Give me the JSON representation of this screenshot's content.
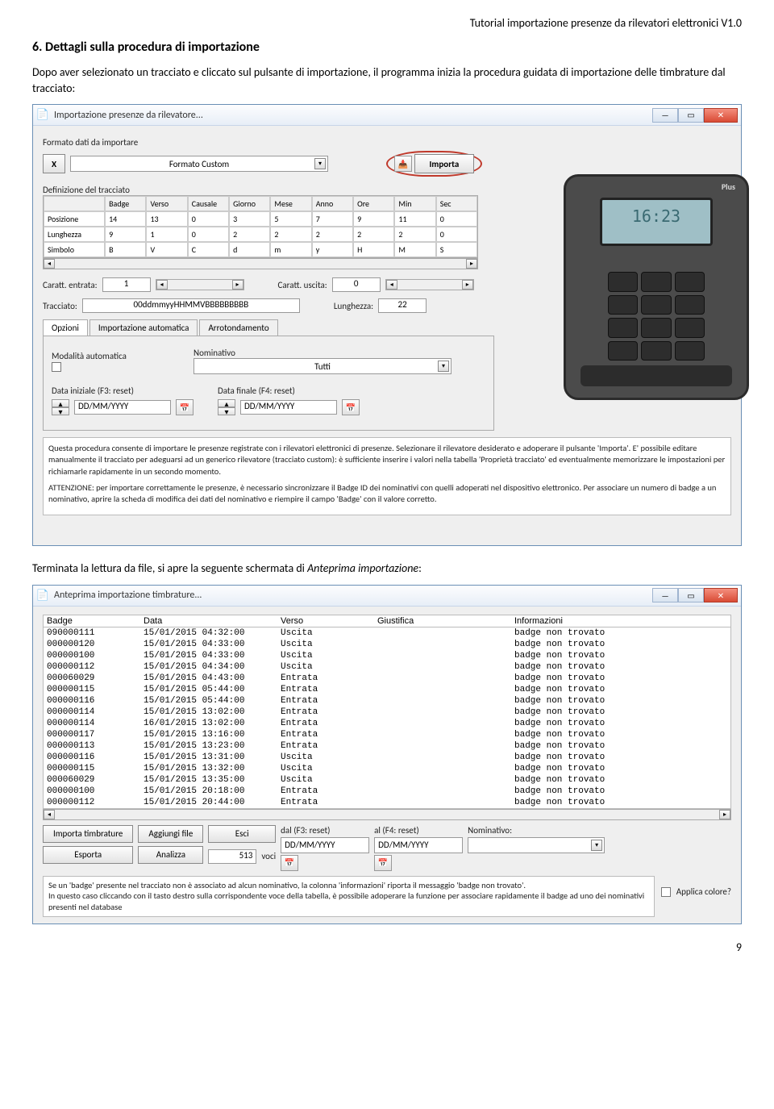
{
  "doc": {
    "header": "Tutorial importazione  presenze da rilevatori elettronici V1.0",
    "section_num": "6.",
    "section_title": "Dettagli sulla procedura di importazione",
    "p1": "Dopo aver selezionato un tracciato e cliccato sul pulsante di importazione, il programma inizia la procedura guidata di importazione delle timbrature dal tracciato:",
    "p2_a": "Terminata la lettura da file, si apre la seguente schermata di ",
    "p2_b": "Anteprima importazione",
    "p2_c": ":",
    "page_num": "9"
  },
  "win1": {
    "title": "Importazione presenze da rilevatore...",
    "formato_lbl": "Formato dati da importare",
    "x_btn": "X",
    "formato_val": "Formato Custom",
    "importa_btn": "Importa",
    "def_tracciato": "Definizione del tracciato",
    "grid_headers": [
      "",
      "Badge",
      "Verso",
      "Causale",
      "Giorno",
      "Mese",
      "Anno",
      "Ore",
      "Min",
      "Sec"
    ],
    "grid_rows": [
      [
        "Posizione",
        "14",
        "13",
        "0",
        "3",
        "5",
        "7",
        "9",
        "11",
        "0"
      ],
      [
        "Lunghezza",
        "9",
        "1",
        "0",
        "2",
        "2",
        "2",
        "2",
        "2",
        "0"
      ],
      [
        "Simbolo",
        "B",
        "V",
        "C",
        "d",
        "m",
        "y",
        "H",
        "M",
        "S"
      ]
    ],
    "caratt_entrata_lbl": "Caratt. entrata:",
    "caratt_entrata_val": "1",
    "caratt_uscita_lbl": "Caratt. uscita:",
    "caratt_uscita_val": "0",
    "tracciato_lbl": "Tracciato:",
    "tracciato_val": "00ddmmyyHHMMVBBBBBBBBB",
    "lunghezza_lbl": "Lunghezza:",
    "lunghezza_val": "22",
    "tab1": "Opzioni",
    "tab2": "Importazione automatica",
    "tab3": "Arrotondamento",
    "mod_auto_lbl": "Modalità automatica",
    "nominativo_lbl": "Nominativo",
    "tutti_val": "Tutti",
    "data_ini_lbl": "Data iniziale (F3: reset)",
    "data_fin_lbl": "Data finale (F4: reset)",
    "date_ph": "DD/MM/YYYY",
    "help_p1": "Questa procedura consente di importare le presenze registrate con i rilevatori elettronici di presenze. Selezionare il rilevatore desiderato e adoperare il pulsante 'Importa'. E' possibile editare manualmente il tracciato per adeguarsi ad un generico rilevatore (tracciato custom): è sufficiente inserire i valori nella tabella 'Proprietà tracciato' ed eventualmente memorizzare le impostazioni per richiamarle rapidamente in un secondo momento.",
    "help_p2": "ATTENZIONE: per importare correttamente le presenze, è necessario sincronizzare il Badge ID dei nominativi con quelli adoperati nel dispositivo elettronico. Per associare un numero di badge a un nominativo, aprire la scheda di modifica dei dati del nominativo e riempire il campo 'Badge' con il valore corretto.",
    "device_time": "16:23"
  },
  "win2": {
    "title": "Anteprima importazione timbrature...",
    "cols": {
      "badge": "Badge",
      "data": "Data",
      "verso": "Verso",
      "giust": "Giustifica",
      "info": "Informazioni"
    },
    "rows": [
      [
        "090000111",
        "15/01/2015 04:32:00",
        "Uscita",
        "",
        "badge non trovato"
      ],
      [
        "000000120",
        "15/01/2015 04:33:00",
        "Uscita",
        "",
        "badge non trovato"
      ],
      [
        "000000100",
        "15/01/2015 04:33:00",
        "Uscita",
        "",
        "badge non trovato"
      ],
      [
        "000000112",
        "15/01/2015 04:34:00",
        "Uscita",
        "",
        "badge non trovato"
      ],
      [
        "000060029",
        "15/01/2015 04:43:00",
        "Entrata",
        "",
        "badge non trovato"
      ],
      [
        "000000115",
        "15/01/2015 05:44:00",
        "Entrata",
        "",
        "badge non trovato"
      ],
      [
        "000000116",
        "15/01/2015 05:44:00",
        "Entrata",
        "",
        "badge non trovato"
      ],
      [
        "000000114",
        "15/01/2015 13:02:00",
        "Entrata",
        "",
        "badge non trovato"
      ],
      [
        "000000114",
        "16/01/2015 13:02:00",
        "Entrata",
        "",
        "badge non trovato"
      ],
      [
        "000000117",
        "15/01/2015 13:16:00",
        "Entrata",
        "",
        "badge non trovato"
      ],
      [
        "000000113",
        "15/01/2015 13:23:00",
        "Entrata",
        "",
        "badge non trovato"
      ],
      [
        "000000116",
        "15/01/2015 13:31:00",
        "Uscita",
        "",
        "badge non trovato"
      ],
      [
        "000000115",
        "15/01/2015 13:32:00",
        "Uscita",
        "",
        "badge non trovato"
      ],
      [
        "000060029",
        "15/01/2015 13:35:00",
        "Uscita",
        "",
        "badge non trovato"
      ],
      [
        "000000100",
        "15/01/2015 20:18:00",
        "Entrata",
        "",
        "badge non trovato"
      ],
      [
        "000000112",
        "15/01/2015 20:44:00",
        "Entrata",
        "",
        "badge non trovato"
      ]
    ],
    "btn_importa": "Importa timbrature",
    "btn_aggiungi": "Aggiungi file",
    "btn_esci": "Esci",
    "btn_esporta": "Esporta",
    "btn_analizza": "Analizza",
    "voci_count": "513",
    "voci_lbl": "voci",
    "dal_lbl": "dal (F3: reset)",
    "al_lbl": "al (F4: reset)",
    "nominativo_lbl": "Nominativo:",
    "date_ph": "DD/MM/YYYY",
    "applica_colore": "Applica colore?",
    "footnote": "Se un 'badge' presente nel tracciato non è associato ad alcun nominativo, la colonna 'informazioni' riporta il messaggio 'badge non trovato'.\nIn questo caso cliccando con il tasto destro sulla corrispondente voce della tabella, è possibile adoperare la funzione per associare rapidamente il badge ad uno dei nominativi presenti nel database"
  }
}
